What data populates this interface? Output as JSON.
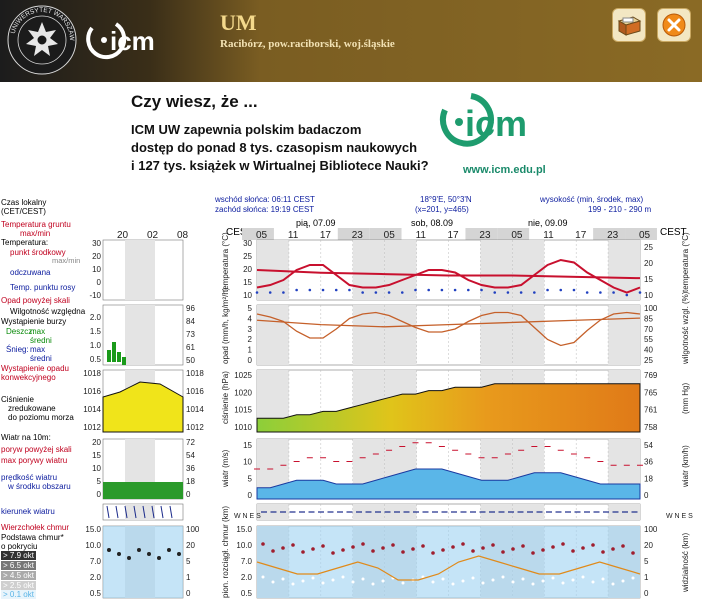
{
  "header": {
    "university_logo_text": "UNIWERSYTET WARSZAWSKI",
    "brand": "icm",
    "model_name": "UM",
    "location": "Racibórz, pow.raciborski, woj.śląskie",
    "buttons": [
      "archive-icon",
      "close-icon"
    ]
  },
  "ad": {
    "title": "Czy wiesz, że ...",
    "lines": [
      "ICM UW zapewnia polskim badaczom",
      "dostęp do ponad 8 tys. czasopism naukowych",
      "i 127 tys. książek w Wirtualnej Bibliotece Nauki?"
    ],
    "url": "www.icm.edu.pl",
    "logo_text": "icm"
  },
  "meteogram": {
    "info": {
      "sunrise": "wschód słońca: 06:11 CEST",
      "sunset": "zachód słońca: 19:19 CEST",
      "coords": "18°9'E, 50°3'N",
      "grid": "(x=201, y=465)",
      "height_label": "wysokość (min, środek, max)",
      "height_values": "199 - 210 - 290 m"
    },
    "cest": "CEST",
    "days": [
      "pią, 07.09",
      "sob, 08.09",
      "nie, 09.09"
    ],
    "hours": [
      "05",
      "11",
      "17",
      "23",
      "05",
      "11",
      "17",
      "23",
      "05",
      "11",
      "17",
      "23",
      "05"
    ],
    "legend_hours": [
      "20",
      "02",
      "08"
    ],
    "legend": {
      "local_time": "Czas lokalny",
      "local_time2": "(CET/CEST)",
      "temp_ground": "Temperatura gruntu",
      "temp_ground2": "max/min",
      "temperature": "Temperatura:",
      "dew_point_mid": "punkt środkowy",
      "max_min": "max/min",
      "felt": "odczuwana",
      "dew_point": "Temp. punktu rosy",
      "precip_above": "Opad powyżej skali",
      "humidity": "Wilgotność względna",
      "storm": "Wystąpienie burzy",
      "rain": "Deszcz:",
      "rain_max": "max",
      "rain_mid": "średni",
      "snow": "Śnieg:",
      "snow_max": "max",
      "snow_mid": "średni",
      "convective": "Wystąpienie opadu",
      "convective2": "konwekcyjnego",
      "pressure": "Ciśnienie",
      "pressure2": "zredukowane",
      "pressure3": "do poziomu morza",
      "wind10": "Wiatr na 10m:",
      "gust_above": "poryw powyżej skali",
      "gust_max": "max porywy wiatru",
      "wind_speed": "prędkość wiatru",
      "wind_speed2": "w środku obszaru",
      "wind_dir": "kierunek wiatru",
      "cloud_top": "Wierzchołek chmur",
      "cloud_base": "Podstawa chmur*",
      "cloud_cover": "o pokryciu",
      "okt1": "> 7.9 okt",
      "okt2": "> 6.5 okt",
      "okt3": "> 4.5 okt",
      "okt4": "> 2.5 okt",
      "okt5": "> 0.1 okt",
      "visibility": "Widzialność"
    },
    "axis_labels": {
      "temp_left": "temperatura (°C)",
      "temp_right": "temperatura (°C)",
      "precip_left": "opad (mm/h, kg/m²/h)",
      "humidity_right": "wilgotność wzgl. (%)",
      "pressure_left": "ciśnienie (hPa)",
      "pressure_right": "(mm Hg)",
      "wind_left": "wiatr (m/s)",
      "wind_right": "wiatr (km/h)",
      "dir_left": "W N E S",
      "dir_right": "W N E S",
      "cloud_left": "pion. rozciągł. chmur (km)",
      "vis_right": "widzialność (km)"
    },
    "ticks": {
      "temp_left": [
        "30",
        "25",
        "20",
        "15",
        "10"
      ],
      "temp_right": [
        "25",
        "20",
        "15",
        "10"
      ],
      "temp_legend": [
        "30",
        "20",
        "10",
        "0",
        "-10"
      ],
      "precip_left": [
        "5",
        "4",
        "3",
        "2",
        "1",
        "0"
      ],
      "precip_legend": [
        "2.0",
        "1.5",
        "1.0",
        "0.5"
      ],
      "humidity_right": [
        "100",
        "85",
        "70",
        "55",
        "40",
        "25"
      ],
      "humidity_legend": [
        "96",
        "84",
        "73",
        "61",
        "50"
      ],
      "pressure_left": [
        "1025",
        "1020",
        "1015",
        "1010"
      ],
      "pressure_right": [
        "769",
        "765",
        "761",
        "758"
      ],
      "pressure_legend_left": [
        "1018",
        "1016",
        "1014",
        "1012"
      ],
      "pressure_legend_right": [
        "1018",
        "1016",
        "1014",
        "1012"
      ],
      "wind_left": [
        "15",
        "10",
        "5",
        "0"
      ],
      "wind_right": [
        "54",
        "36",
        "18",
        "0"
      ],
      "wind_legend_left": [
        "20",
        "15",
        "10",
        "5",
        "0"
      ],
      "wind_legend_right": [
        "72",
        "54",
        "36",
        "18",
        "0"
      ],
      "cloud_left": [
        "15.0",
        "10.0",
        "7.0",
        "2.0",
        "0.5"
      ],
      "vis_right": [
        "100",
        "20",
        "5",
        "1",
        "0"
      ],
      "cloud_legend_left": [
        "15.0",
        "10.0",
        "7.0",
        "2.0",
        "0.5"
      ],
      "cloud_legend_right": [
        "100",
        "20",
        "5",
        "1",
        "0"
      ]
    },
    "series": {
      "temperature": [
        13,
        14,
        16,
        20,
        22,
        22,
        18,
        14,
        13,
        13,
        14,
        16,
        18,
        20,
        20,
        19,
        16,
        14,
        13,
        13,
        14,
        18,
        22,
        24,
        23,
        19,
        16,
        13,
        11,
        13
      ],
      "dew_point": [
        11,
        11,
        11,
        12,
        12,
        12,
        12,
        12,
        11,
        11,
        11,
        11,
        12,
        12,
        12,
        12,
        12,
        12,
        11,
        11,
        11,
        11,
        12,
        12,
        12,
        11,
        11,
        11,
        10,
        11
      ],
      "humidity": [
        88,
        84,
        78,
        65,
        56,
        56,
        68,
        82,
        88,
        90,
        86,
        78,
        70,
        64,
        64,
        68,
        78,
        86,
        90,
        90,
        86,
        70,
        54,
        46,
        50,
        66,
        80,
        88,
        90,
        88
      ],
      "pressure": [
        1012,
        1012,
        1012,
        1013,
        1013,
        1014,
        1014,
        1015,
        1016,
        1017,
        1018,
        1019,
        1019,
        1020,
        1020,
        1021,
        1021,
        1021,
        1022,
        1022,
        1022,
        1022,
        1022,
        1022,
        1022,
        1022,
        1022,
        1022,
        1022,
        1022
      ],
      "wind": [
        3,
        3,
        4,
        5,
        5,
        5,
        4,
        4,
        4,
        5,
        6,
        7,
        8,
        8,
        8,
        7,
        6,
        5,
        5,
        5,
        6,
        7,
        7,
        7,
        6,
        5,
        4,
        4,
        4,
        4
      ],
      "gust": [
        8,
        8,
        9,
        10,
        11,
        11,
        10,
        10,
        11,
        12,
        13,
        14,
        15,
        15,
        14,
        13,
        12,
        11,
        11,
        12,
        13,
        14,
        14,
        13,
        12,
        11,
        10,
        9,
        9,
        9
      ]
    }
  }
}
